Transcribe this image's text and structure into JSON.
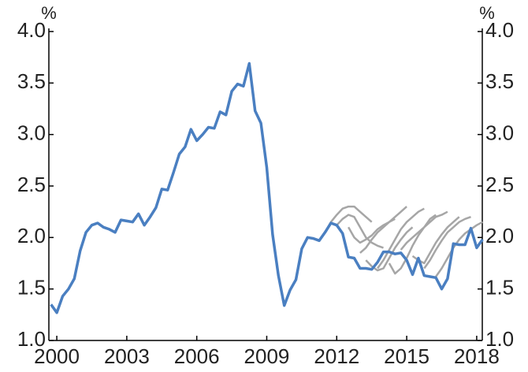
{
  "chart_data": {
    "type": "line",
    "y_label": "%",
    "y2_label": "%",
    "xlim": [
      1999.66,
      2018.24
    ],
    "xticks": [
      2000,
      2003,
      2006,
      2009,
      2012,
      2015,
      2018
    ],
    "ylim": [
      1,
      4
    ],
    "yticks": [
      {
        "value": 1,
        "label": "1.0"
      },
      1.5,
      {
        "value": 2,
        "label": "2.0"
      },
      2.5,
      {
        "value": 3,
        "label": "3.0"
      },
      3.5,
      {
        "value": 4,
        "label": "4.0"
      }
    ],
    "y2lim": [
      1,
      4
    ],
    "y2ticks": [
      {
        "value": 1,
        "label": "1.0"
      },
      1.5,
      {
        "value": 2,
        "label": "2.0"
      },
      2.5,
      {
        "value": 3,
        "label": "3.0"
      },
      3.5,
      {
        "value": 4,
        "label": "4.0"
      }
    ],
    "series": [
      {
        "color": "#a6a6a6",
        "x": [
          2011.5,
          2011.75,
          2012,
          2012.25,
          2012.5,
          2012.75,
          2013,
          2013.25,
          2013.5
        ],
        "values": [
          2.05,
          2.15,
          2.22,
          2.28,
          2.3,
          2.3,
          2.25,
          2.2,
          2.15
        ]
      },
      {
        "color": "#a6a6a6",
        "x": [
          2012,
          2012.25,
          2012.5,
          2012.75,
          2013,
          2013.25,
          2013.5,
          2013.75,
          2014
        ],
        "values": [
          2.12,
          2.18,
          2.22,
          2.2,
          2.1,
          2.0,
          1.95,
          1.92,
          1.9
        ]
      },
      {
        "color": "#a6a6a6",
        "x": [
          2012.5,
          2012.75,
          2013,
          2013.25,
          2013.5,
          2013.75,
          2014,
          2014.25,
          2014.5
        ],
        "values": [
          2.1,
          2.0,
          1.95,
          1.98,
          2.02,
          2.08,
          2.12,
          2.15,
          2.18
        ]
      },
      {
        "color": "#a6a6a6",
        "x": [
          2013,
          2013.25,
          2013.5,
          2013.75,
          2014,
          2014.25,
          2014.5,
          2014.75,
          2015
        ],
        "values": [
          1.85,
          1.9,
          1.98,
          2.05,
          2.1,
          2.15,
          2.2,
          2.25,
          2.3
        ]
      },
      {
        "color": "#a6a6a6",
        "x": [
          2013.25,
          2013.5,
          2013.75,
          2014,
          2014.25,
          2014.5,
          2014.75,
          2015,
          2015.25
        ],
        "values": [
          1.78,
          1.72,
          1.68,
          1.7,
          1.8,
          1.9,
          1.98,
          2.05,
          2.1
        ]
      },
      {
        "color": "#a6a6a6",
        "x": [
          2013.75,
          2014,
          2014.25,
          2014.5,
          2014.75,
          2015,
          2015.25,
          2015.5,
          2015.75
        ],
        "values": [
          1.7,
          1.78,
          1.88,
          1.98,
          2.08,
          2.15,
          2.2,
          2.25,
          2.28
        ]
      },
      {
        "color": "#a6a6a6",
        "x": [
          2014.25,
          2014.5,
          2014.75,
          2015,
          2015.25,
          2015.5,
          2015.75,
          2016,
          2016.25
        ],
        "values": [
          1.75,
          1.65,
          1.7,
          1.8,
          1.92,
          2.02,
          2.1,
          2.18,
          2.22
        ]
      },
      {
        "color": "#a6a6a6",
        "x": [
          2014.75,
          2015,
          2015.25,
          2015.5,
          2015.75,
          2016,
          2016.25,
          2016.5,
          2016.75
        ],
        "values": [
          1.88,
          1.95,
          2.0,
          2.05,
          2.1,
          2.15,
          2.2,
          2.22,
          2.25
        ]
      },
      {
        "color": "#a6a6a6",
        "x": [
          2015.25,
          2015.5,
          2015.75,
          2016,
          2016.25,
          2016.5,
          2016.75,
          2017,
          2017.25
        ],
        "values": [
          1.82,
          1.78,
          1.75,
          1.85,
          1.95,
          2.03,
          2.1,
          2.15,
          2.2
        ]
      },
      {
        "color": "#a6a6a6",
        "x": [
          2015.75,
          2016,
          2016.25,
          2016.5,
          2016.75,
          2017,
          2017.25,
          2017.5,
          2017.75
        ],
        "values": [
          1.7,
          1.78,
          1.88,
          1.97,
          2.05,
          2.1,
          2.15,
          2.18,
          2.2
        ]
      },
      {
        "color": "#a6a6a6",
        "x": [
          2016.25,
          2016.5,
          2016.75,
          2017,
          2017.25,
          2017.5,
          2017.75,
          2018,
          2018.25
        ],
        "values": [
          1.62,
          1.7,
          1.8,
          1.9,
          1.98,
          2.04,
          2.08,
          2.12,
          2.15
        ]
      },
      {
        "color": "#4a7fc1",
        "x": [
          1999.75,
          2000,
          2000.25,
          2000.5,
          2000.75,
          2001,
          2001.25,
          2001.5,
          2001.75,
          2002,
          2002.25,
          2002.5,
          2002.75,
          2003,
          2003.25,
          2003.5,
          2003.75,
          2004,
          2004.25,
          2004.5,
          2004.75,
          2005,
          2005.25,
          2005.5,
          2005.75,
          2006,
          2006.25,
          2006.5,
          2006.75,
          2007,
          2007.25,
          2007.5,
          2007.75,
          2008,
          2008.25,
          2008.5,
          2008.75,
          2009,
          2009.25,
          2009.5,
          2009.75,
          2010,
          2010.25,
          2010.5,
          2010.75,
          2011,
          2011.25,
          2011.5,
          2011.75,
          2012,
          2012.25,
          2012.5,
          2012.75,
          2013,
          2013.25,
          2013.5,
          2013.75,
          2014,
          2014.25,
          2014.5,
          2014.75,
          2015,
          2015.25,
          2015.5,
          2015.75,
          2016,
          2016.25,
          2016.5,
          2016.75,
          2017,
          2017.25,
          2017.5,
          2017.75,
          2018,
          2018.25
        ],
        "values": [
          1.35,
          1.27,
          1.43,
          1.5,
          1.6,
          1.87,
          2.05,
          2.12,
          2.14,
          2.1,
          2.08,
          2.05,
          2.17,
          2.16,
          2.15,
          2.23,
          2.12,
          2.2,
          2.29,
          2.47,
          2.46,
          2.63,
          2.81,
          2.88,
          3.05,
          2.94,
          3.0,
          3.07,
          3.06,
          3.22,
          3.19,
          3.42,
          3.49,
          3.47,
          3.69,
          3.23,
          3.11,
          2.68,
          2.03,
          1.63,
          1.34,
          1.49,
          1.59,
          1.89,
          2.0,
          1.99,
          1.97,
          2.05,
          2.14,
          2.12,
          2.04,
          1.81,
          1.8,
          1.7,
          1.7,
          1.69,
          1.76,
          1.86,
          1.86,
          1.84,
          1.85,
          1.78,
          1.64,
          1.8,
          1.63,
          1.62,
          1.61,
          1.5,
          1.6,
          1.94,
          1.93,
          1.93,
          2.09,
          1.9,
          1.98
        ]
      }
    ]
  }
}
